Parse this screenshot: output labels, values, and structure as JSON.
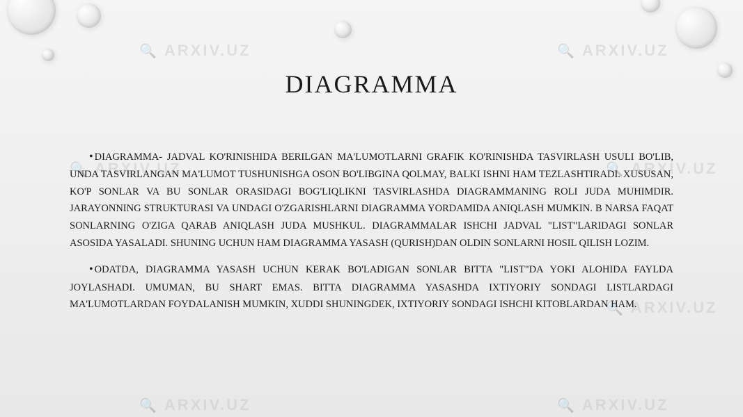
{
  "slide": {
    "title": "DIAGRAMMA",
    "paragraphs": [
      "DIAGRAMMA- JADVAL KO'RINISHIDA BERILGAN MA'LUMOTLARNI GRAFIK KO'RINISHDA TASVIRLASH USULI BO'LIB, UNDA TASVIRLANGAN MA'LUMOT TUSHUNISHGA OSON BO'LIBGINA QOLMAY, BALKI ISHNI HAM TEZLASHTIRADI. XUSUSAN, KO'P SONLAR VA BU SONLAR ORASIDAGI BOG'LIQLIKNI TASVIRLASHDA DIAGRAMMANING ROLI JUDA MUHIMDIR. JARAYONNING STRUKTURASI VA UNDAGI O'ZGARISHLARNI DIAGRAMMA YORDAMIDA ANIQLASH MUMKIN. B NARSA FAQAT SONLARNING O'ZIGA QARAB ANIQLASH JUDA MUSHKUL. DIAGRAMMALAR ISHCHI JADVAL \"LIST\"LARIDAGI SONLAR ASOSIDA YASALADI. SHUNING UCHUN HAM DIAGRAMMA YASASH (QURISH)DAN OLDIN SONLARNI HOSIL QILISH LOZIM.",
      "ODATDA, DIAGRAMMA YASASH UCHUN KERAK BO'LADIGAN SONLAR BITTA \"LIST\"DA YOKI ALOHIDA FAYLDA JOYLASHADI. UMUMAN, BU SHART EMAS. BITTA DIAGRAMMA YASASHDA IXTIYORIY SONDAGI LISTLARDAGI MA'LUMOTLARDAN FOYDALANISH MUMKIN, XUDDI SHUNINGDEK, IXTIYORIY SONDAGI ISHCHI KITOBLARDAN HAM."
    ],
    "watermark_text": "ARXIV.UZ",
    "colors": {
      "text": "#1a1a1a",
      "watermark": "#c0c0c0",
      "background_top": "#f5f5f5",
      "background_bottom": "#e8e8e8"
    },
    "fonts": {
      "title_size": 36,
      "body_size": 14.5
    }
  }
}
